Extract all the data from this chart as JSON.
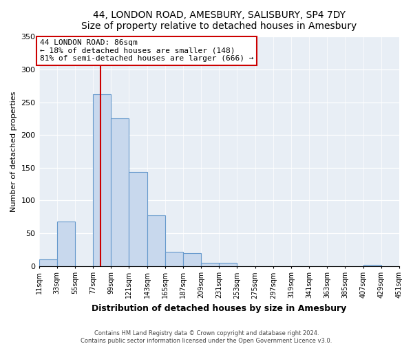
{
  "title": "44, LONDON ROAD, AMESBURY, SALISBURY, SP4 7DY",
  "subtitle": "Size of property relative to detached houses in Amesbury",
  "xlabel": "Distribution of detached houses by size in Amesbury",
  "ylabel": "Number of detached properties",
  "bar_color": "#c8d8ed",
  "bar_edge_color": "#6699cc",
  "bin_edges": [
    11,
    33,
    55,
    77,
    99,
    121,
    143,
    165,
    187,
    209,
    231,
    253,
    275,
    297,
    319,
    341,
    363,
    385,
    407,
    429,
    451
  ],
  "bar_heights": [
    10,
    68,
    0,
    262,
    225,
    143,
    77,
    22,
    19,
    5,
    5,
    0,
    0,
    0,
    0,
    0,
    0,
    0,
    2,
    0
  ],
  "tick_labels": [
    "11sqm",
    "33sqm",
    "55sqm",
    "77sqm",
    "99sqm",
    "121sqm",
    "143sqm",
    "165sqm",
    "187sqm",
    "209sqm",
    "231sqm",
    "253sqm",
    "275sqm",
    "297sqm",
    "319sqm",
    "341sqm",
    "363sqm",
    "385sqm",
    "407sqm",
    "429sqm",
    "451sqm"
  ],
  "ylim": [
    0,
    350
  ],
  "yticks": [
    0,
    50,
    100,
    150,
    200,
    250,
    300,
    350
  ],
  "vline_x": 86,
  "vline_color": "#cc0000",
  "annotation_title": "44 LONDON ROAD: 86sqm",
  "annotation_line1": "← 18% of detached houses are smaller (148)",
  "annotation_line2": "81% of semi-detached houses are larger (666) →",
  "annotation_box_color": "#ffffff",
  "annotation_box_edge": "#cc0000",
  "footer1": "Contains HM Land Registry data © Crown copyright and database right 2024.",
  "footer2": "Contains public sector information licensed under the Open Government Licence v3.0.",
  "background_color": "#ffffff",
  "plot_background": "#e8eef5"
}
